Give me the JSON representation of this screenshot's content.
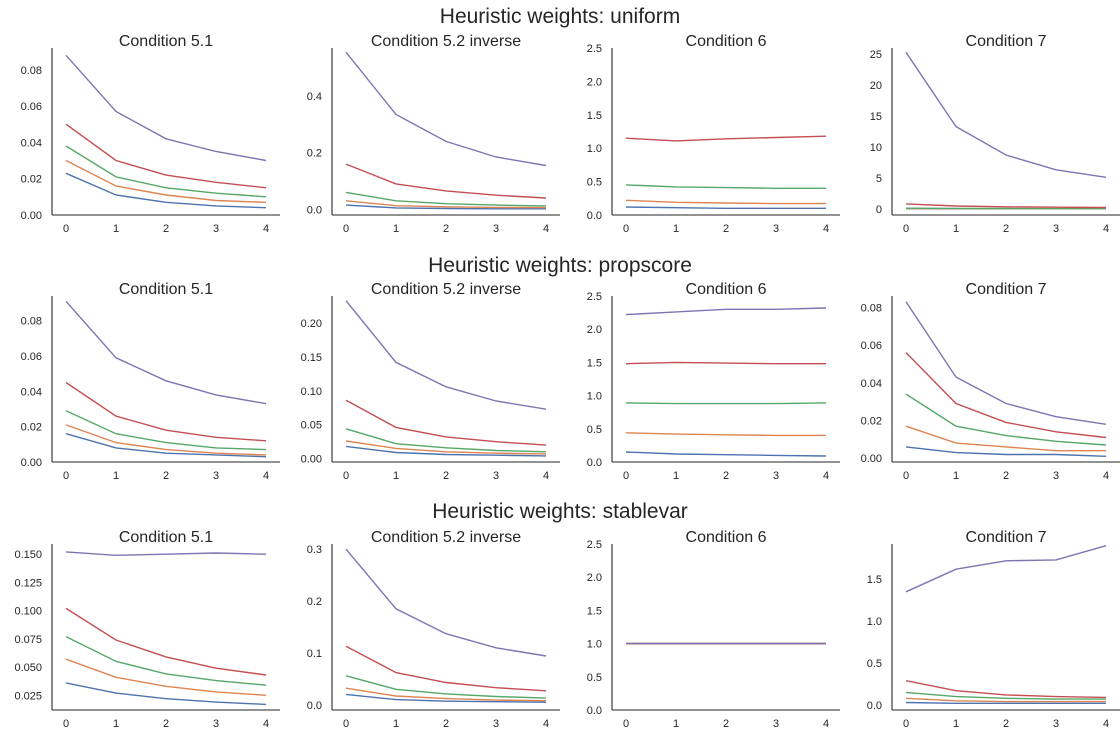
{
  "rows": [
    {
      "title": "Heuristic weights: uniform"
    },
    {
      "title": "Heuristic weights: propscore"
    },
    {
      "title": "Heuristic weights: stablevar"
    }
  ],
  "colors": [
    "#4c72b0",
    "#dd8452",
    "#55a868",
    "#c44e52",
    "#8172b3"
  ],
  "chart_data": [
    {
      "type": "line",
      "title": "Condition 5.1",
      "x": [
        0,
        1,
        2,
        3,
        4
      ],
      "xlabel": "",
      "ylabel": "",
      "yticks": [
        0.0,
        0.02,
        0.04,
        0.06,
        0.08
      ],
      "ylim": [
        0,
        0.092
      ],
      "series": [
        {
          "values": [
            0.023,
            0.011,
            0.007,
            0.005,
            0.004
          ]
        },
        {
          "values": [
            0.03,
            0.016,
            0.011,
            0.008,
            0.007
          ]
        },
        {
          "values": [
            0.038,
            0.021,
            0.015,
            0.012,
            0.01
          ]
        },
        {
          "values": [
            0.05,
            0.03,
            0.022,
            0.018,
            0.015
          ]
        },
        {
          "values": [
            0.088,
            0.057,
            0.042,
            0.035,
            0.03
          ]
        }
      ]
    },
    {
      "type": "line",
      "title": "Condition 5.2 inverse",
      "x": [
        0,
        1,
        2,
        3,
        4
      ],
      "xlabel": "",
      "ylabel": "",
      "yticks": [
        0.0,
        0.2,
        0.4
      ],
      "ylim": [
        -0.02,
        0.57
      ],
      "series": [
        {
          "values": [
            0.015,
            0.005,
            0.003,
            0.002,
            0.002
          ]
        },
        {
          "values": [
            0.03,
            0.013,
            0.009,
            0.007,
            0.006
          ]
        },
        {
          "values": [
            0.06,
            0.03,
            0.02,
            0.015,
            0.012
          ]
        },
        {
          "values": [
            0.16,
            0.09,
            0.065,
            0.05,
            0.04
          ]
        },
        {
          "values": [
            0.555,
            0.335,
            0.24,
            0.185,
            0.155
          ]
        }
      ]
    },
    {
      "type": "line",
      "title": "Condition 6",
      "x": [
        0,
        1,
        2,
        3,
        4
      ],
      "xlabel": "",
      "ylabel": "",
      "yticks": [
        0.0,
        0.5,
        1.0,
        1.5,
        2.0,
        2.5
      ],
      "ylim": [
        0,
        2.5
      ],
      "series": [
        {
          "values": [
            0.12,
            0.11,
            0.1,
            0.1,
            0.1
          ]
        },
        {
          "values": [
            0.22,
            0.19,
            0.18,
            0.17,
            0.17
          ]
        },
        {
          "values": [
            0.45,
            0.42,
            0.41,
            0.4,
            0.4
          ]
        },
        {
          "values": [
            1.15,
            1.11,
            1.14,
            1.16,
            1.18
          ]
        },
        {
          "values": [
            null,
            null,
            null,
            null,
            null
          ]
        }
      ]
    },
    {
      "type": "line",
      "title": "Condition 7",
      "x": [
        0,
        1,
        2,
        3,
        4
      ],
      "xlabel": "",
      "ylabel": "",
      "yticks": [
        0,
        5,
        10,
        15,
        20,
        25
      ],
      "ylim": [
        -1,
        26
      ],
      "series": [
        {
          "values": [
            0.02,
            0.01,
            0.01,
            0.01,
            0.01
          ]
        },
        {
          "values": [
            0.05,
            0.03,
            0.02,
            0.02,
            0.02
          ]
        },
        {
          "values": [
            0.1,
            0.07,
            0.05,
            0.04,
            0.04
          ]
        },
        {
          "values": [
            0.8,
            0.45,
            0.32,
            0.26,
            0.22
          ]
        },
        {
          "values": [
            25.3,
            13.3,
            8.7,
            6.3,
            5.1
          ]
        }
      ]
    },
    {
      "type": "line",
      "title": "Condition 5.1",
      "x": [
        0,
        1,
        2,
        3,
        4
      ],
      "xlabel": "",
      "ylabel": "",
      "yticks": [
        0.0,
        0.02,
        0.04,
        0.06,
        0.08
      ],
      "ylim": [
        0,
        0.094
      ],
      "series": [
        {
          "values": [
            0.016,
            0.008,
            0.005,
            0.004,
            0.003
          ]
        },
        {
          "values": [
            0.021,
            0.011,
            0.007,
            0.005,
            0.004
          ]
        },
        {
          "values": [
            0.029,
            0.016,
            0.011,
            0.008,
            0.007
          ]
        },
        {
          "values": [
            0.045,
            0.026,
            0.018,
            0.014,
            0.012
          ]
        },
        {
          "values": [
            0.091,
            0.059,
            0.046,
            0.038,
            0.033
          ]
        }
      ]
    },
    {
      "type": "line",
      "title": "Condition 5.2 inverse",
      "x": [
        0,
        1,
        2,
        3,
        4
      ],
      "xlabel": "",
      "ylabel": "",
      "yticks": [
        0.0,
        0.05,
        0.1,
        0.15,
        0.2
      ],
      "ylim": [
        -0.005,
        0.24
      ],
      "series": [
        {
          "values": [
            0.018,
            0.009,
            0.006,
            0.005,
            0.004
          ]
        },
        {
          "values": [
            0.026,
            0.015,
            0.01,
            0.008,
            0.007
          ]
        },
        {
          "values": [
            0.044,
            0.022,
            0.016,
            0.012,
            0.01
          ]
        },
        {
          "values": [
            0.086,
            0.046,
            0.032,
            0.025,
            0.02
          ]
        },
        {
          "values": [
            0.233,
            0.142,
            0.106,
            0.085,
            0.073
          ]
        }
      ]
    },
    {
      "type": "line",
      "title": "Condition 6",
      "x": [
        0,
        1,
        2,
        3,
        4
      ],
      "xlabel": "",
      "ylabel": "",
      "yticks": [
        0.0,
        0.5,
        1.0,
        1.5,
        2.0,
        2.5
      ],
      "ylim": [
        0,
        2.5
      ],
      "series": [
        {
          "values": [
            0.15,
            0.12,
            0.11,
            0.1,
            0.09
          ]
        },
        {
          "values": [
            0.44,
            0.42,
            0.41,
            0.4,
            0.4
          ]
        },
        {
          "values": [
            0.89,
            0.88,
            0.88,
            0.88,
            0.89
          ]
        },
        {
          "values": [
            1.48,
            1.5,
            1.49,
            1.48,
            1.48
          ]
        },
        {
          "values": [
            2.22,
            2.26,
            2.3,
            2.3,
            2.32
          ]
        }
      ]
    },
    {
      "type": "line",
      "title": "Condition 7",
      "x": [
        0,
        1,
        2,
        3,
        4
      ],
      "xlabel": "",
      "ylabel": "",
      "yticks": [
        0.0,
        0.02,
        0.04,
        0.06,
        0.08
      ],
      "ylim": [
        -0.002,
        0.086
      ],
      "series": [
        {
          "values": [
            0.006,
            0.003,
            0.002,
            0.002,
            0.001
          ]
        },
        {
          "values": [
            0.017,
            0.008,
            0.006,
            0.004,
            0.004
          ]
        },
        {
          "values": [
            0.034,
            0.017,
            0.012,
            0.009,
            0.007
          ]
        },
        {
          "values": [
            0.056,
            0.029,
            0.019,
            0.014,
            0.011
          ]
        },
        {
          "values": [
            0.083,
            0.043,
            0.029,
            0.022,
            0.018
          ]
        }
      ]
    },
    {
      "type": "line",
      "title": "Condition 5.1",
      "x": [
        0,
        1,
        2,
        3,
        4
      ],
      "xlabel": "",
      "ylabel": "",
      "yticks": [
        0.025,
        0.05,
        0.075,
        0.1,
        0.125,
        0.15
      ],
      "ylim": [
        0.012,
        0.159
      ],
      "series": [
        {
          "values": [
            0.036,
            0.027,
            0.022,
            0.019,
            0.017
          ]
        },
        {
          "values": [
            0.057,
            0.041,
            0.033,
            0.028,
            0.025
          ]
        },
        {
          "values": [
            0.077,
            0.055,
            0.044,
            0.038,
            0.034
          ]
        },
        {
          "values": [
            0.102,
            0.074,
            0.059,
            0.049,
            0.043
          ]
        },
        {
          "values": [
            0.152,
            0.149,
            0.15,
            0.151,
            0.15
          ]
        }
      ]
    },
    {
      "type": "line",
      "title": "Condition 5.2 inverse",
      "x": [
        0,
        1,
        2,
        3,
        4
      ],
      "xlabel": "",
      "ylabel": "",
      "yticks": [
        0.0,
        0.1,
        0.2,
        0.3
      ],
      "ylim": [
        -0.01,
        0.31
      ],
      "series": [
        {
          "values": [
            0.02,
            0.01,
            0.007,
            0.006,
            0.005
          ]
        },
        {
          "values": [
            0.032,
            0.017,
            0.012,
            0.009,
            0.008
          ]
        },
        {
          "values": [
            0.056,
            0.03,
            0.021,
            0.016,
            0.013
          ]
        },
        {
          "values": [
            0.113,
            0.062,
            0.043,
            0.033,
            0.027
          ]
        },
        {
          "values": [
            0.3,
            0.185,
            0.137,
            0.11,
            0.094
          ]
        }
      ]
    },
    {
      "type": "line",
      "title": "Condition 6",
      "x": [
        0,
        1,
        2,
        3,
        4
      ],
      "xlabel": "",
      "ylabel": "",
      "yticks": [
        0.0,
        0.5,
        1.0,
        1.5,
        2.0,
        2.5
      ],
      "ylim": [
        0,
        2.5
      ],
      "series": [
        {
          "values": [
            1.0,
            1.0,
            1.0,
            1.0,
            1.0
          ]
        },
        {
          "values": [
            1.0,
            1.0,
            1.0,
            1.0,
            1.0
          ]
        },
        {
          "values": [
            1.0,
            1.0,
            1.0,
            1.0,
            1.0
          ]
        },
        {
          "values": [
            1.0,
            1.0,
            1.0,
            1.0,
            1.0
          ]
        },
        {
          "values": [
            1.0,
            1.0,
            1.0,
            1.0,
            1.0
          ]
        }
      ]
    },
    {
      "type": "line",
      "title": "Condition 7",
      "x": [
        0,
        1,
        2,
        3,
        4
      ],
      "xlabel": "",
      "ylabel": "",
      "yticks": [
        0.0,
        0.5,
        1.0,
        1.5
      ],
      "ylim": [
        -0.06,
        1.92
      ],
      "series": [
        {
          "values": [
            0.03,
            0.02,
            0.02,
            0.02,
            0.02
          ]
        },
        {
          "values": [
            0.08,
            0.05,
            0.04,
            0.04,
            0.04
          ]
        },
        {
          "values": [
            0.15,
            0.1,
            0.08,
            0.07,
            0.07
          ]
        },
        {
          "values": [
            0.29,
            0.17,
            0.12,
            0.1,
            0.09
          ]
        },
        {
          "values": [
            1.35,
            1.62,
            1.72,
            1.73,
            1.9
          ]
        }
      ]
    }
  ]
}
